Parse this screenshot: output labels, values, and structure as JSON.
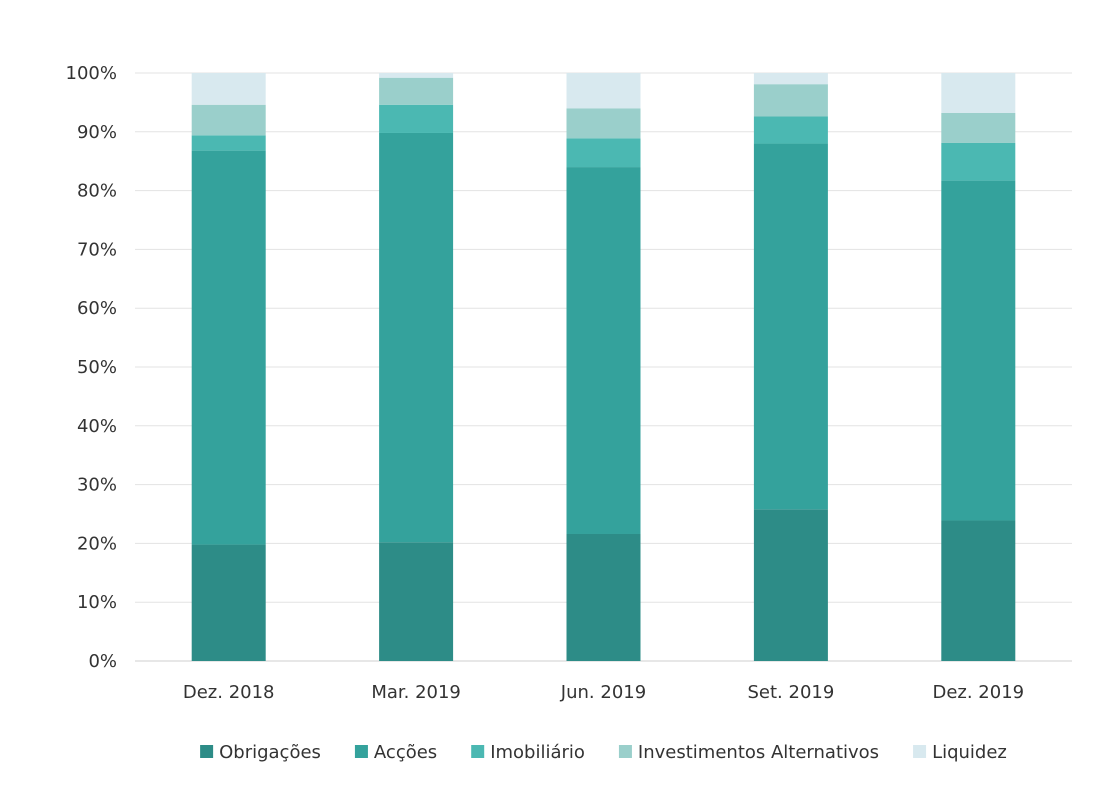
{
  "chart_data": {
    "type": "bar",
    "stacked": true,
    "categories": [
      "Dez. 2018",
      "Mar. 2019",
      "Jun. 2019",
      "Set. 2019",
      "Dez. 2019"
    ],
    "series": [
      {
        "name": "Obrigações",
        "color": "#2d8c87",
        "values": [
          19.8,
          20.2,
          21.6,
          25.8,
          23.9
        ]
      },
      {
        "name": "Acções",
        "color": "#34a29c",
        "values": [
          67.0,
          69.6,
          62.4,
          62.2,
          57.8
        ]
      },
      {
        "name": "Imobiliário",
        "color": "#4bb8b2",
        "values": [
          2.6,
          4.8,
          4.9,
          4.6,
          6.4
        ]
      },
      {
        "name": "Investimentos Alternativos",
        "color": "#9acfcb",
        "values": [
          5.2,
          4.6,
          5.1,
          5.5,
          5.1
        ]
      },
      {
        "name": "Liquidez",
        "color": "#d8e9ef",
        "values": [
          5.4,
          0.8,
          6.0,
          1.9,
          6.8
        ]
      }
    ],
    "yticks": [
      "0%",
      "10%",
      "20%",
      "30%",
      "40%",
      "50%",
      "60%",
      "70%",
      "80%",
      "90%",
      "100%"
    ],
    "ylim": [
      0,
      100
    ],
    "grid": true,
    "legend": "bottom",
    "title": "",
    "xlabel": "",
    "ylabel": ""
  }
}
